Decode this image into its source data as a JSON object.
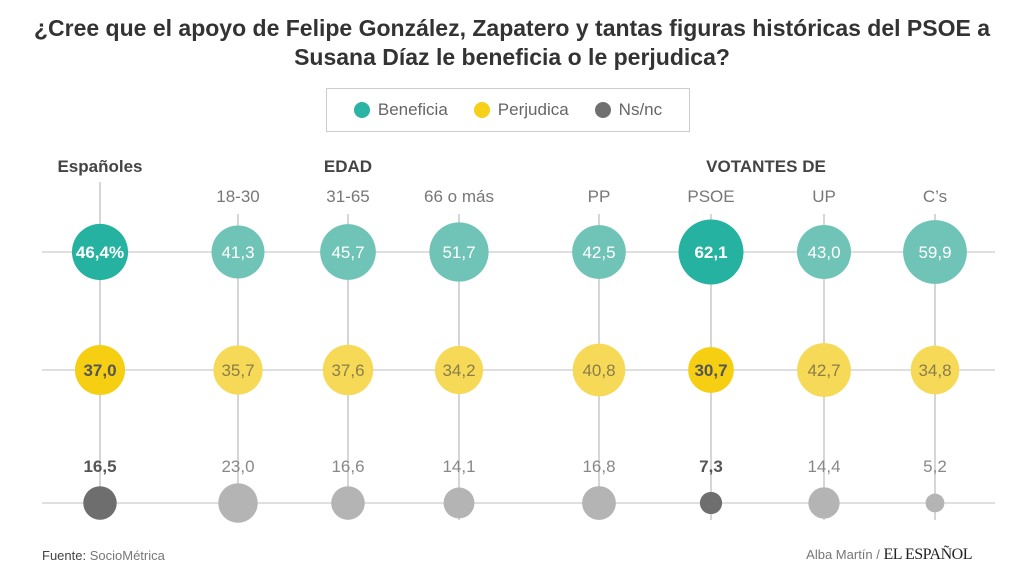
{
  "chart_data": {
    "type": "bubble-grid",
    "title": "¿Cree que el apoyo de Felipe González, Zapatero y tantas figuras históricas del PSOE a Susana Díaz le beneficia o le perjudica?",
    "legend": [
      {
        "name": "Beneficia",
        "color": "#2bb3a3"
      },
      {
        "name": "Perjudica",
        "color": "#f6d01a"
      },
      {
        "name": "Ns/nc",
        "color": "#707070"
      }
    ],
    "legend_placement": "top",
    "groups": [
      {
        "label": "Españoles",
        "columns": [
          0
        ]
      },
      {
        "label": "EDAD",
        "columns": [
          1,
          2,
          3
        ]
      },
      {
        "label": "VOTANTES DE",
        "columns": [
          4,
          5,
          6,
          7
        ]
      }
    ],
    "categories": [
      "Españoles",
      "18-30",
      "31-65",
      "66 o más",
      "PP",
      "PSOE",
      "UP",
      "C’s"
    ],
    "highlighted": [
      "Españoles",
      "PSOE"
    ],
    "series": [
      {
        "name": "Beneficia",
        "values": [
          46.4,
          41.3,
          45.7,
          51.7,
          42.5,
          62.1,
          43.0,
          59.9
        ],
        "labels": [
          "46,4%",
          "41,3",
          "45,7",
          "51,7",
          "42,5",
          "62,1",
          "43,0",
          "59,9"
        ],
        "color_strong": "#26b2a0",
        "color_light": "#6fc4b7"
      },
      {
        "name": "Perjudica",
        "values": [
          37.0,
          35.7,
          37.6,
          34.2,
          40.8,
          30.7,
          42.7,
          34.8
        ],
        "labels": [
          "37,0",
          "35,7",
          "37,6",
          "34,2",
          "40,8",
          "30,7",
          "42,7",
          "34,8"
        ],
        "color_strong": "#f6cf12",
        "color_light": "#f6da57"
      },
      {
        "name": "Ns/nc",
        "values": [
          16.5,
          23.0,
          16.6,
          14.1,
          16.8,
          7.3,
          14.4,
          5.2
        ],
        "labels": [
          "16,5",
          "23,0",
          "16,6",
          "14,1",
          "16,8",
          "7,3",
          "14,4",
          "5,2"
        ],
        "color_strong": "#6e6e6e",
        "color_light": "#b4b4b4"
      }
    ]
  },
  "footer": {
    "source_label": "Fuente:",
    "source": "SocioMétrica",
    "author": "Alba Martín /",
    "logo": "EL ESPAÑOL"
  }
}
